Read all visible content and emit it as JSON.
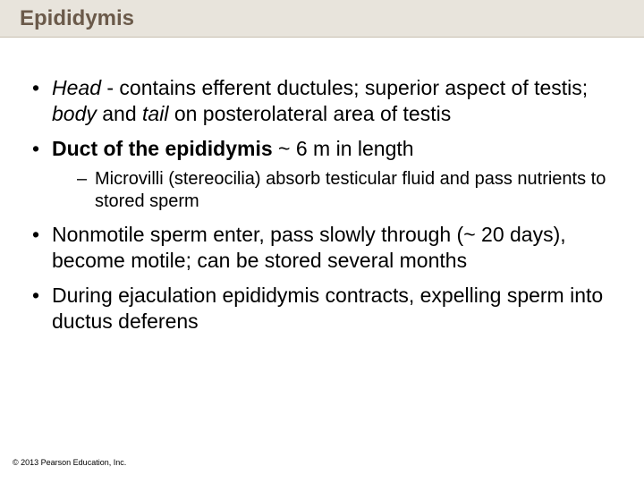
{
  "title": "Epididymis",
  "bullets": [
    {
      "segments": [
        {
          "t": "Head",
          "i": true,
          "b": false
        },
        {
          "t": " - contains efferent ductules; superior aspect of testis; ",
          "i": false,
          "b": false
        },
        {
          "t": "body",
          "i": true,
          "b": false
        },
        {
          "t": " and ",
          "i": false,
          "b": false
        },
        {
          "t": "tail",
          "i": true,
          "b": false
        },
        {
          "t": " on posterolateral area of testis",
          "i": false,
          "b": false
        }
      ]
    },
    {
      "segments": [
        {
          "t": "Duct of the epididymis",
          "i": false,
          "b": true
        },
        {
          "t": " ~ 6 m in length",
          "i": false,
          "b": false
        }
      ],
      "sub": [
        {
          "segments": [
            {
              "t": "Microvilli (stereocilia) absorb testicular fluid and pass nutrients to stored sperm",
              "i": false,
              "b": false
            }
          ]
        }
      ]
    },
    {
      "segments": [
        {
          "t": "Nonmotile sperm enter, pass slowly through (~ 20 days), become motile; can be stored several months",
          "i": false,
          "b": false
        }
      ]
    },
    {
      "segments": [
        {
          "t": "During ejaculation epididymis contracts, expelling sperm into ductus deferens",
          "i": false,
          "b": false
        }
      ]
    }
  ],
  "footer": "© 2013 Pearson Education, Inc."
}
